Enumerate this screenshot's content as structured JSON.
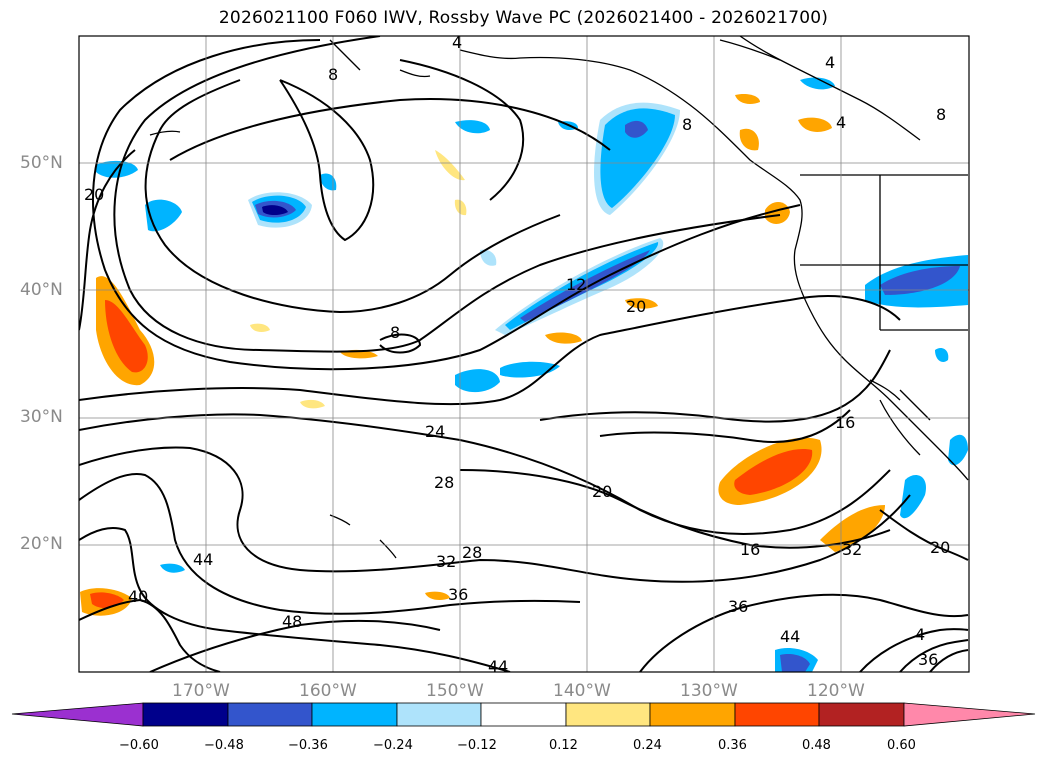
{
  "title": "2026021100 F060 IWV, Rossby Wave PC (2026021400 - 2026021700)",
  "lat_labels": [
    "50°N",
    "40°N",
    "30°N",
    "20°N"
  ],
  "lon_labels": [
    "170°W",
    "160°W",
    "150°W",
    "140°W",
    "130°W",
    "120°W"
  ],
  "contour_labels": [
    "4",
    "8",
    "4",
    "4",
    "20",
    "12",
    "20",
    "8",
    "24",
    "28",
    "20",
    "16",
    "16",
    "32",
    "28",
    "32",
    "36",
    "44",
    "40",
    "48",
    "36",
    "44",
    "44",
    "20",
    "36",
    "4",
    "8",
    "8"
  ],
  "colorbar": {
    "ticks": [
      "−0.60",
      "−0.48",
      "−0.36",
      "−0.24",
      "−0.12",
      "0.12",
      "0.24",
      "0.36",
      "0.48",
      "0.60"
    ],
    "colors": [
      "#9b30d0",
      "#00008b",
      "#3355cc",
      "#00b4ff",
      "#aee3fb",
      "#ffffff",
      "#ffe680",
      "#ffa500",
      "#ff4500",
      "#b22222",
      "#ff88aa"
    ]
  }
}
